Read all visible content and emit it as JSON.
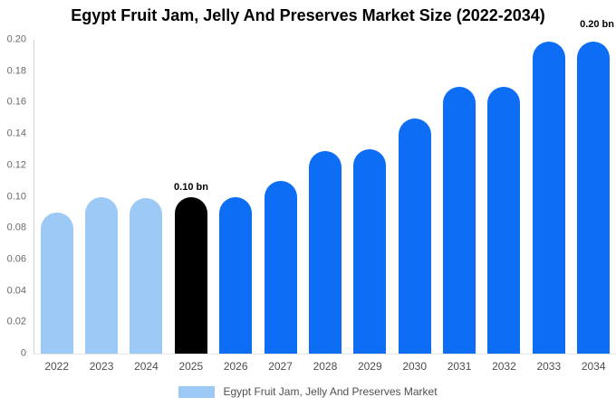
{
  "chart_data": {
    "type": "bar",
    "title": "Egypt Fruit Jam, Jelly And Preserves Market Size (2022-2034)",
    "unit": "bn",
    "categories": [
      "2022",
      "2023",
      "2024",
      "2025",
      "2026",
      "2027",
      "2028",
      "2029",
      "2030",
      "2031",
      "2032",
      "2033",
      "2034"
    ],
    "values": [
      0.09,
      0.1,
      0.099,
      0.1,
      0.1,
      0.11,
      0.129,
      0.13,
      0.15,
      0.17,
      0.17,
      0.199,
      0.199
    ],
    "bar_colors": [
      "#9dc9f7",
      "#9dc9f7",
      "#9dc9f7",
      "#000000",
      "#0d6ef5",
      "#0d6ef5",
      "#0d6ef5",
      "#0d6ef5",
      "#0d6ef5",
      "#0d6ef5",
      "#0d6ef5",
      "#0d6ef5",
      "#0d6ef5"
    ],
    "colors": {
      "historical_blue": "#9dc9f7",
      "base_year_black": "#000000",
      "forecast_blue": "#0d6ef5"
    },
    "ylim": [
      0,
      0.2
    ],
    "yticks": [
      "0",
      "0.02",
      "0.04",
      "0.06",
      "0.08",
      "0.10",
      "0.12",
      "0.14",
      "0.16",
      "0.18",
      "0.20"
    ],
    "grid": false,
    "xlabel": "",
    "ylabel": "",
    "legend": {
      "position": "bottom",
      "label": "Egypt Fruit Jam, Jelly And Preserves Market",
      "swatch_color": "#9dc9f7"
    },
    "annotations": [
      {
        "category": "2025",
        "text": "0.10 bn",
        "placement": "above-bar"
      },
      {
        "category": "2034",
        "text": "0.20 bn",
        "placement": "top-right"
      }
    ]
  }
}
